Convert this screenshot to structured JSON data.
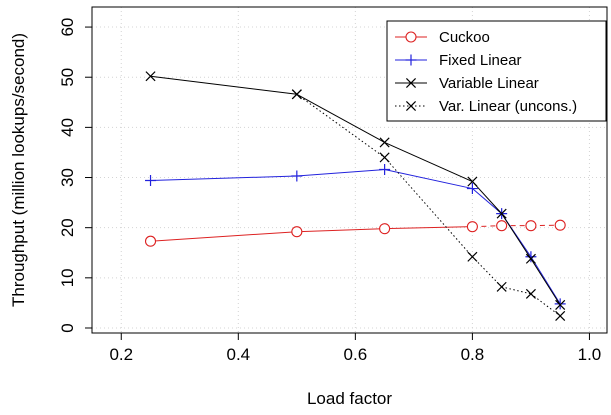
{
  "chart_data": {
    "type": "line",
    "title": "",
    "xlabel": "Load factor",
    "ylabel": "Throughput (million lookups/second)",
    "xlim": [
      0.15,
      1.03
    ],
    "ylim": [
      -1,
      64
    ],
    "xticks": [
      0.2,
      0.4,
      0.6,
      0.8,
      1.0
    ],
    "xtick_labels": [
      "0.2",
      "0.4",
      "0.6",
      "0.8",
      "1.0"
    ],
    "yticks": [
      0,
      10,
      20,
      30,
      40,
      50,
      60
    ],
    "ytick_labels": [
      "0",
      "10",
      "20",
      "30",
      "40",
      "50",
      "60"
    ],
    "grid": true,
    "legend_position": "top-right",
    "series": [
      {
        "name": "Cuckoo",
        "color": "#dd2222",
        "marker": "circle",
        "x": [
          0.25,
          0.5,
          0.65,
          0.8,
          0.85,
          0.9,
          0.95
        ],
        "y": [
          17.3,
          19.2,
          19.8,
          20.2,
          20.4,
          20.4,
          20.5
        ],
        "segment_styles": [
          "solid",
          "solid",
          "solid",
          "dashed",
          "dashed",
          "dashed"
        ]
      },
      {
        "name": "Fixed Linear",
        "color": "#2222dd",
        "marker": "plus",
        "x": [
          0.25,
          0.5,
          0.65,
          0.8,
          0.85,
          0.9,
          0.95
        ],
        "y": [
          29.4,
          30.3,
          31.6,
          27.8,
          22.8,
          14.2,
          4.8
        ],
        "segment_styles": [
          "solid",
          "solid",
          "solid",
          "solid",
          "solid",
          "solid"
        ]
      },
      {
        "name": "Variable Linear",
        "color": "#000000",
        "marker": "cross",
        "x": [
          0.25,
          0.5,
          0.65,
          0.8,
          0.85,
          0.9,
          0.95
        ],
        "y": [
          50.2,
          46.6,
          37.0,
          29.2,
          22.8,
          13.8,
          4.6
        ],
        "segment_styles": [
          "solid",
          "solid",
          "solid",
          "solid",
          "solid",
          "solid"
        ]
      },
      {
        "name": "Var. Linear (uncons.)",
        "color": "#000000",
        "marker": "cross",
        "x": [
          0.5,
          0.65,
          0.8,
          0.85,
          0.9,
          0.95
        ],
        "y": [
          46.6,
          34.0,
          14.2,
          8.2,
          6.8,
          2.4
        ],
        "segment_styles": [
          "dotted",
          "dotted",
          "dotted",
          "dotted",
          "dotted"
        ]
      }
    ],
    "legend": [
      {
        "label": "Cuckoo",
        "color": "#dd2222",
        "marker": "circle",
        "line": "solid"
      },
      {
        "label": "Fixed Linear",
        "color": "#2222dd",
        "marker": "plus",
        "line": "solid"
      },
      {
        "label": "Variable Linear",
        "color": "#000000",
        "marker": "cross",
        "line": "solid"
      },
      {
        "label": "Var. Linear (uncons.)",
        "color": "#000000",
        "marker": "cross",
        "line": "dotted"
      }
    ]
  }
}
